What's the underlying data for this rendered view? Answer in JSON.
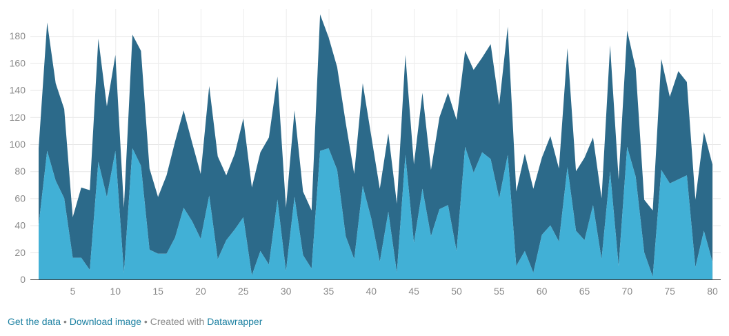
{
  "chart_data": {
    "type": "area",
    "stacked": true,
    "x": [
      1,
      2,
      3,
      4,
      5,
      6,
      7,
      8,
      9,
      10,
      11,
      12,
      13,
      14,
      15,
      16,
      17,
      18,
      19,
      20,
      21,
      22,
      23,
      24,
      25,
      26,
      27,
      28,
      29,
      30,
      31,
      32,
      33,
      34,
      35,
      36,
      37,
      38,
      39,
      40,
      41,
      42,
      43,
      44,
      45,
      46,
      47,
      48,
      49,
      50,
      51,
      52,
      53,
      54,
      55,
      56,
      57,
      58,
      59,
      60,
      61,
      62,
      63,
      64,
      65,
      66,
      67,
      68,
      69,
      70,
      71,
      72,
      73,
      74,
      75,
      76,
      77,
      78,
      79,
      80
    ],
    "series": [
      {
        "color": "#41b0d6",
        "values": [
          40,
          95,
          73,
          60,
          16,
          16,
          7,
          87,
          61,
          95,
          5,
          97,
          84,
          22,
          19,
          19,
          31,
          53,
          43,
          30,
          62,
          15,
          29,
          37,
          46,
          3,
          21,
          11,
          59,
          6,
          61,
          18,
          8,
          95,
          97,
          81,
          32,
          15,
          69,
          45,
          13,
          50,
          5,
          92,
          27,
          67,
          32,
          52,
          55,
          21,
          98,
          79,
          94,
          89,
          60,
          92,
          10,
          21,
          5,
          33,
          40,
          28,
          83,
          36,
          29,
          55,
          15,
          80,
          10,
          98,
          76,
          20,
          2,
          81,
          71,
          74,
          77,
          9,
          36,
          13
        ],
        "stack_top": [
          97,
          190,
          145,
          126,
          46,
          68,
          66,
          178,
          128,
          166,
          53,
          181,
          169,
          82,
          61,
          77,
          102,
          125,
          101,
          78,
          143,
          91,
          77,
          93,
          119,
          68,
          94,
          105,
          150,
          53,
          125,
          65,
          51,
          196,
          179,
          157,
          116,
          78,
          145,
          106,
          67,
          108,
          56,
          166,
          85,
          138,
          81,
          120,
          138,
          118,
          169,
          155,
          164,
          174,
          129,
          187,
          65,
          93,
          67,
          90,
          106,
          82,
          171,
          80,
          90,
          105,
          60,
          173,
          74,
          184,
          156,
          59,
          51,
          163,
          135,
          154,
          146,
          59,
          109,
          85
        ]
      },
      {
        "color": "#2c6a8a",
        "values": [
          57,
          95,
          72,
          66,
          30,
          52,
          59,
          91,
          67,
          71,
          48,
          84,
          85,
          60,
          42,
          58,
          71,
          72,
          58,
          48,
          81,
          76,
          48,
          56,
          73,
          65,
          73,
          94,
          91,
          47,
          64,
          47,
          43,
          101,
          82,
          76,
          84,
          63,
          76,
          61,
          54,
          58,
          51,
          74,
          58,
          71,
          49,
          68,
          83,
          97,
          71,
          76,
          70,
          85,
          69,
          95,
          55,
          72,
          62,
          57,
          66,
          54,
          88,
          44,
          61,
          50,
          45,
          93,
          64,
          86,
          80,
          39,
          49,
          82,
          64,
          80,
          69,
          50,
          73,
          72
        ]
      }
    ],
    "xticks": [
      5,
      10,
      15,
      20,
      25,
      30,
      35,
      40,
      45,
      50,
      55,
      60,
      65,
      70,
      75,
      80
    ],
    "xtick_labels": [
      "5",
      "10",
      "15",
      "20",
      "25",
      "30",
      "35",
      "40",
      "45",
      "50",
      "55",
      "60",
      "65",
      "70",
      "75",
      "80"
    ],
    "yticks": [
      0,
      20,
      40,
      60,
      80,
      100,
      120,
      140,
      160,
      180
    ],
    "ytick_labels": [
      "0",
      "20",
      "40",
      "60",
      "80",
      "100",
      "120",
      "140",
      "160",
      "180"
    ],
    "xlim": [
      1,
      80
    ],
    "ylim": [
      0,
      200
    ],
    "grid": true,
    "legend": "none"
  },
  "footer": {
    "get_data": "Get the data",
    "sep1": " • ",
    "download": "Download image",
    "sep2": " • ",
    "created_with": "Created with ",
    "brand": "Datawrapper"
  }
}
